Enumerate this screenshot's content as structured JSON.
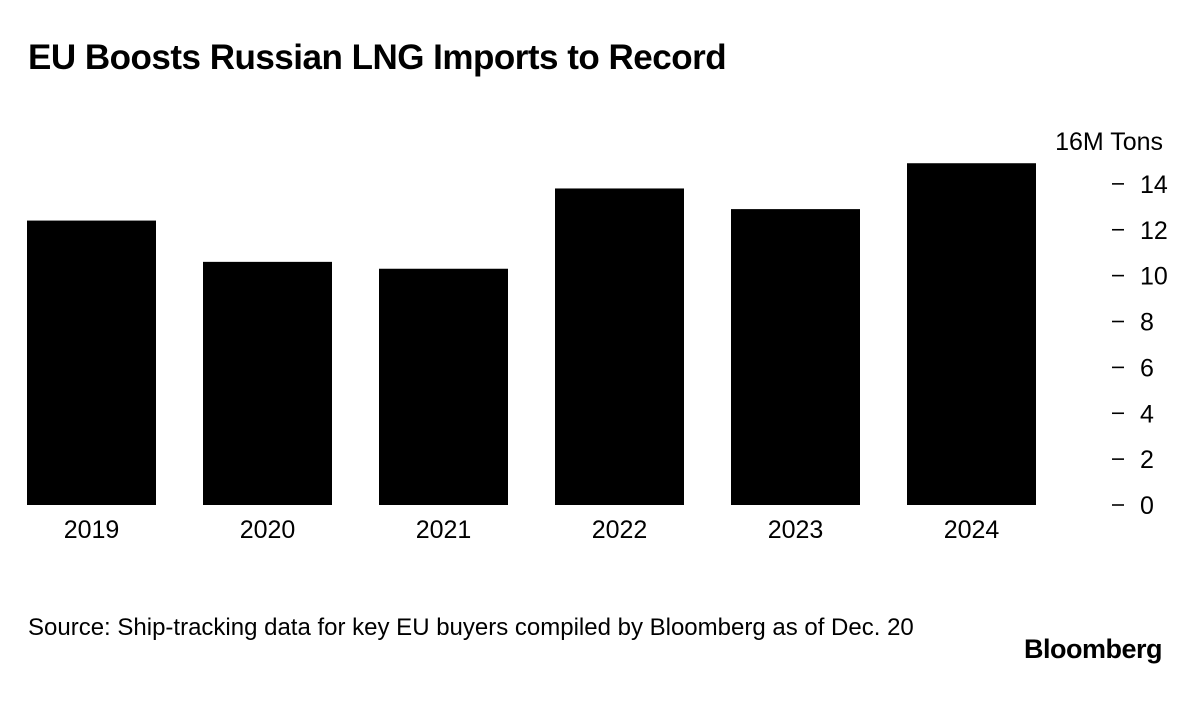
{
  "chart_data": {
    "type": "bar",
    "title": "EU Boosts Russian LNG Imports to Record",
    "unit_label": "16M Tons",
    "categories": [
      "2019",
      "2020",
      "2021",
      "2022",
      "2023",
      "2024"
    ],
    "values": [
      12.4,
      10.6,
      10.3,
      13.8,
      12.9,
      14.9
    ],
    "ylim": [
      0,
      16
    ],
    "yticks": [
      {
        "value": 0,
        "label": "0"
      },
      {
        "value": 2,
        "label": "2"
      },
      {
        "value": 4,
        "label": "4"
      },
      {
        "value": 6,
        "label": "6"
      },
      {
        "value": 8,
        "label": "8"
      },
      {
        "value": 10,
        "label": "10"
      },
      {
        "value": 12,
        "label": "12"
      },
      {
        "value": 14,
        "label": "14"
      }
    ],
    "y_axis_side": "right",
    "grid": false,
    "bar_color": "#000000"
  },
  "footer": {
    "source": "Source: Ship-tracking data for key EU buyers compiled by Bloomberg as of Dec. 20",
    "brand": "Bloomberg"
  }
}
